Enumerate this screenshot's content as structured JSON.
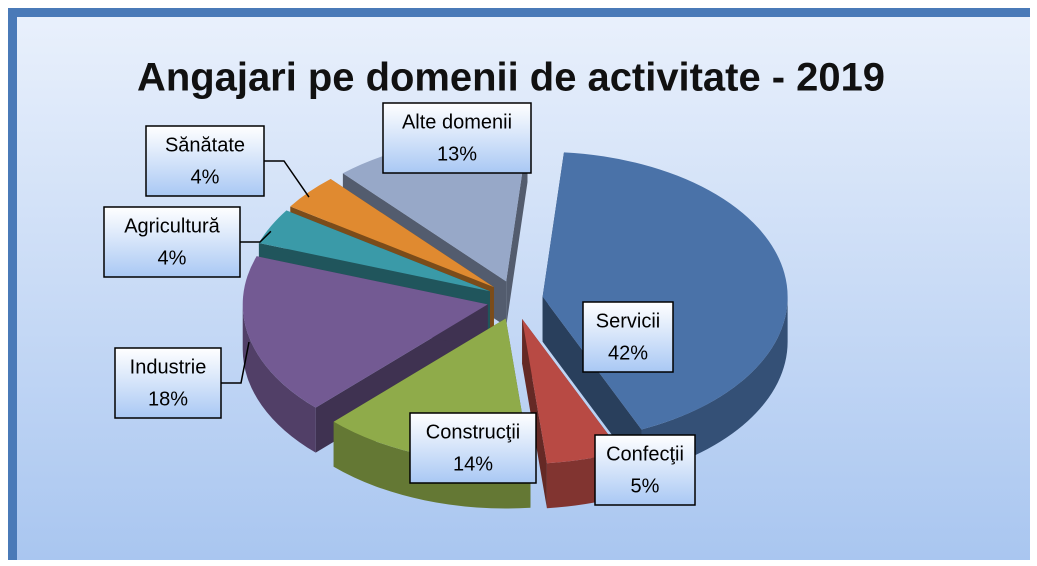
{
  "chart_data": {
    "type": "pie",
    "title": "Angajari pe domenii de activitate - 2019",
    "categories": [
      "Servicii",
      "Confecţii",
      "Construcţii",
      "Industrie",
      "Agricultură",
      "Sănătate",
      "Alte domenii"
    ],
    "values": [
      42,
      5,
      14,
      18,
      4,
      4,
      13
    ],
    "value_labels": [
      "42%",
      "5%",
      "14%",
      "18%",
      "4%",
      "4%",
      "13%"
    ],
    "colors": [
      "#4a72a8",
      "#b84a44",
      "#8fab4a",
      "#735a93",
      "#3a9aa8",
      "#e08a30",
      "#97a8c8"
    ]
  }
}
